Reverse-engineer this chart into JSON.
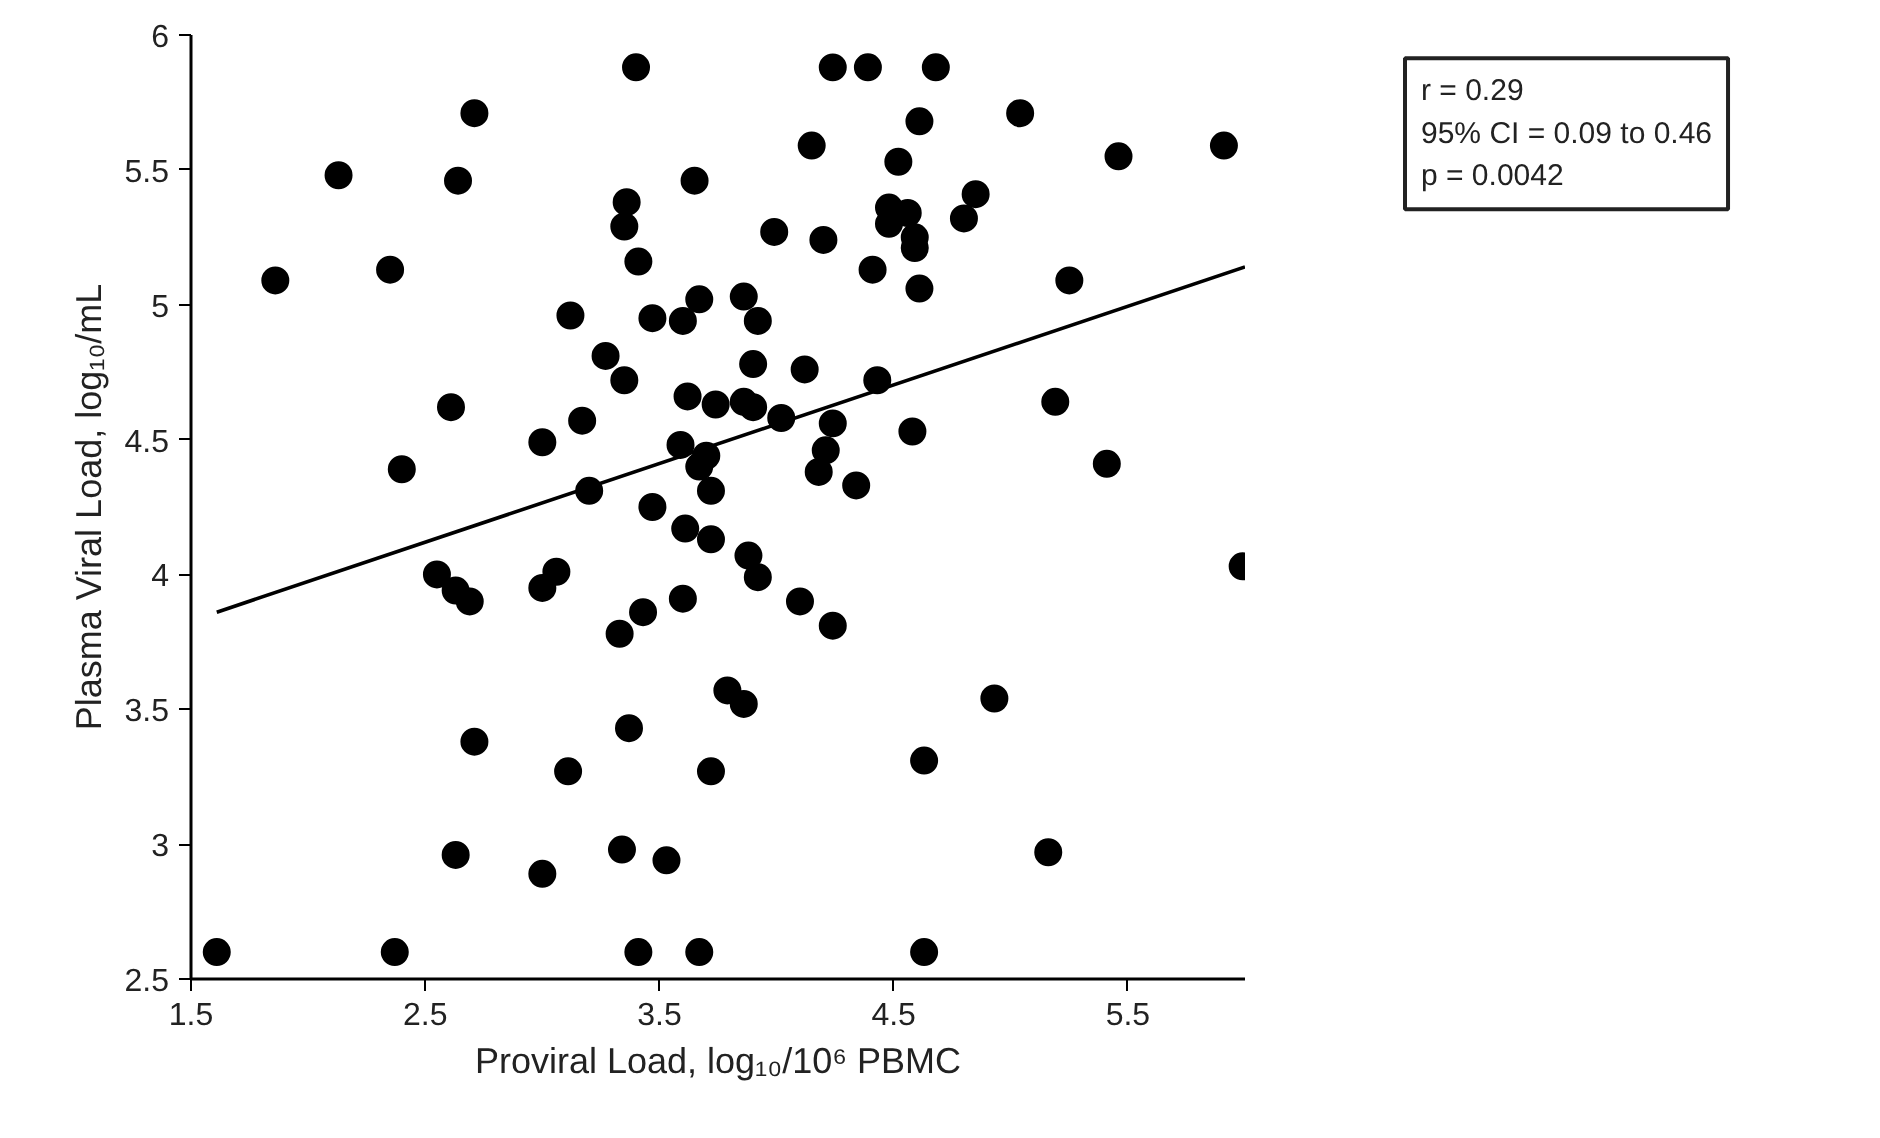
{
  "chart_data": {
    "type": "scatter",
    "xlabel": "Proviral Load, log₁₀/10⁶ PBMC",
    "ylabel": "Plasma Viral Load, log₁₀/mL",
    "xlim": [
      1.5,
      6.0
    ],
    "xticks": [
      1.5,
      2.5,
      3.5,
      4.5,
      5.5
    ],
    "ylim": [
      2.5,
      6.0
    ],
    "yticks": [
      2.5,
      3,
      3.5,
      4,
      4.5,
      5,
      5.5,
      6
    ],
    "grid": false,
    "annotations": [
      "r = 0.29",
      "95% CI = 0.09 to 0.46",
      "p = 0.0042"
    ],
    "series": [
      {
        "color": "#000000",
        "marker": "circle",
        "x": [
          3.4,
          4.24,
          2.71,
          4.15,
          2.13,
          2.64,
          3.65,
          3.36,
          3.35,
          3.99,
          4.2,
          1.86,
          2.35,
          3.41,
          3.12,
          3.47,
          3.6,
          3.67,
          3.86,
          3.92,
          3.27,
          3.35,
          3.9,
          4.12,
          2.61,
          3.62,
          3.74,
          3.86,
          3.9,
          4.02,
          3.17,
          4.24,
          3.0,
          2.4,
          3.59,
          3.7,
          3.67,
          4.21,
          4.18,
          4.39,
          4.68,
          4.61,
          5.04,
          5.46,
          5.91,
          4.52,
          4.85,
          4.8,
          4.48,
          4.56,
          4.48,
          4.59,
          4.59,
          4.41,
          4.61,
          5.25,
          4.43,
          5.19,
          4.58,
          5.41,
          4.34,
          3.2,
          3.47,
          3.72,
          3.61,
          3.72,
          3.88,
          3.92,
          2.55,
          2.63,
          2.69,
          3.06,
          3.0,
          4.1,
          4.24,
          3.43,
          3.6,
          3.33,
          3.79,
          3.86,
          2.71,
          3.37,
          3.11,
          3.72,
          2.63,
          3.0,
          3.34,
          3.53,
          1.61,
          2.37,
          3.41,
          3.67,
          5.99,
          4.93,
          4.63,
          5.16,
          4.63
        ],
        "values": [
          5.88,
          5.88,
          5.71,
          5.59,
          5.48,
          5.46,
          5.46,
          5.38,
          5.29,
          5.27,
          5.24,
          5.09,
          5.13,
          5.16,
          4.96,
          4.95,
          4.94,
          5.02,
          5.03,
          4.94,
          4.81,
          4.72,
          4.78,
          4.76,
          4.62,
          4.66,
          4.63,
          4.64,
          4.62,
          4.58,
          4.57,
          4.56,
          4.49,
          4.39,
          4.48,
          4.44,
          4.4,
          4.46,
          4.38,
          5.88,
          5.88,
          5.68,
          5.71,
          5.55,
          5.59,
          5.53,
          5.41,
          5.32,
          5.36,
          5.34,
          5.3,
          5.25,
          5.21,
          5.13,
          5.06,
          5.09,
          4.72,
          4.64,
          4.53,
          4.41,
          4.33,
          4.31,
          4.25,
          4.31,
          4.17,
          4.13,
          4.07,
          3.99,
          4.0,
          3.94,
          3.9,
          4.01,
          3.95,
          3.9,
          3.81,
          3.86,
          3.91,
          3.78,
          3.57,
          3.52,
          3.38,
          3.43,
          3.27,
          3.27,
          2.96,
          2.89,
          2.98,
          2.94,
          2.6,
          2.6,
          2.6,
          2.6,
          4.03,
          3.54,
          3.31,
          2.97,
          2.6
        ]
      },
      {
        "type": "line",
        "color": "#000000",
        "line_style": "solid",
        "x": [
          1.61,
          6.0
        ],
        "values": [
          3.86,
          5.14
        ]
      }
    ]
  }
}
